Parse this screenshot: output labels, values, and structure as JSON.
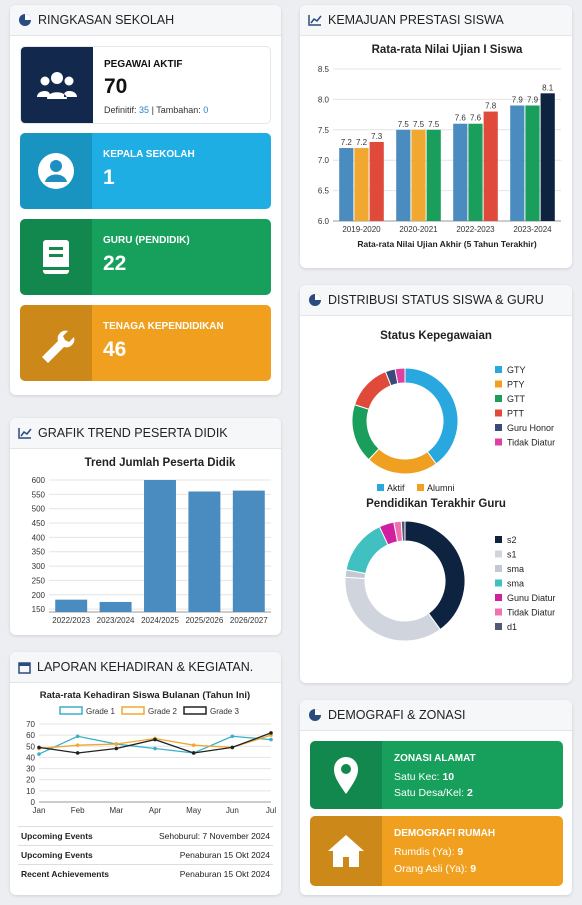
{
  "summary": {
    "title": "RINGKASAN SEKOLAH",
    "cards": [
      {
        "label": "PEGAWAI AKTIF",
        "value": 70,
        "details": [
          {
            "label": "Definitif:",
            "value": 35
          },
          {
            "label": "Tambahan:",
            "value": 0
          }
        ],
        "separator": "|"
      },
      {
        "label": "KEPALA SEKOLAH",
        "value": 1
      },
      {
        "label": "GURU (PENDIDIK)",
        "value": 22
      },
      {
        "label": "TENAGA KEPENDIDIKAN",
        "value": 46
      }
    ]
  },
  "trend": {
    "title": "GRAFIK TREND PESERTA DIDIK",
    "chart": {
      "type": "bar",
      "title": "Trend Jumlah Peserta Didik",
      "categories": [
        "2022/2023",
        "2023/2024",
        "2024/2025",
        "2025/2026",
        "2026/2027"
      ],
      "values": [
        183,
        175,
        600,
        560,
        563
      ],
      "color": "#4a8cc0",
      "ylim": [
        140,
        600
      ],
      "yticks": [
        150,
        200,
        250,
        300,
        350,
        400,
        450,
        500,
        550,
        600
      ],
      "grid": true
    }
  },
  "attendance": {
    "title": "LAPORAN KEHADIRAN & KEGIATAN.",
    "chart": {
      "type": "line",
      "title": "Rata-rata Kehadiran Siswa Bulanan (Tahun Ini)",
      "categories": [
        "Jan",
        "Feb",
        "Mar",
        "Apr",
        "May",
        "Jun",
        "Jul"
      ],
      "series": [
        {
          "name": "Grade 1",
          "color": "#3ab0c8",
          "values": [
            43,
            59,
            52,
            48,
            44,
            59,
            56
          ]
        },
        {
          "name": "Grade 2",
          "color": "#f0a830",
          "values": [
            48,
            51,
            52,
            57,
            51,
            49,
            60
          ]
        },
        {
          "name": "Grade 3",
          "color": "#222222",
          "values": [
            49,
            44,
            48,
            56,
            44,
            49,
            62
          ]
        }
      ],
      "ylim": [
        0,
        70
      ],
      "yticks": [
        0,
        10,
        20,
        30,
        40,
        50,
        60,
        70
      ],
      "grid": true
    },
    "events": [
      [
        "Upcoming Events",
        "Sehoburul: 7 November 2024"
      ],
      [
        "Upcoming Events",
        "Penaburan 15 Okt 2024"
      ],
      [
        "Recent Achievements",
        "Penaburan 15 Okt 2024"
      ]
    ]
  },
  "progress": {
    "title": "KEMAJUAN PRESTASI SISWA",
    "chart": {
      "type": "bar",
      "title": "Rata-rata Nilai Ujian I Siswa",
      "x_label": "Rata-rata Nilai Ujian Akhir (5 Tahun Terakhir)",
      "categories": [
        "2019-2020",
        "2020-2021",
        "2022-2023",
        "2023-2024"
      ],
      "series": [
        {
          "colors": [
            "#4a8cc0",
            "#4a8cc0",
            "#4a8cc0",
            "#4a8cc0"
          ],
          "values": [
            7.2,
            7.5,
            7.6,
            7.9
          ]
        },
        {
          "colors": [
            "#f0a830",
            "#f0a830",
            "#1a9e5c",
            "#1a9e5c"
          ],
          "values": [
            7.2,
            7.5,
            7.6,
            7.9
          ]
        },
        {
          "colors": [
            "#e04a3a",
            "#1a9e5c",
            "#e04a3a",
            "#0d2340"
          ],
          "values": [
            7.3,
            7.5,
            7.8,
            8.1
          ]
        }
      ],
      "ylim": [
        6,
        8.5
      ],
      "yticks": [
        {
          "value": 6,
          "label": "6.0"
        },
        6.5,
        {
          "value": 7,
          "label": "7.0"
        },
        7.5,
        {
          "value": 8,
          "label": "8.0"
        },
        8.5
      ],
      "grid": true
    }
  },
  "distribution": {
    "title": "DISTRIBUSI STATUS SISWA & GURU",
    "charts": [
      {
        "type": "donut",
        "title": "Status Kepegawaian",
        "categories": [
          "GTY",
          "PTY",
          "GTT",
          "PTT",
          "Guru Honor",
          "Tidak Diatur"
        ],
        "values": [
          40,
          22,
          18,
          14,
          3,
          3
        ],
        "colors": [
          "#29a8e0",
          "#f0a020",
          "#1a9e5c",
          "#e04a3a",
          "#3a4a7a",
          "#e040a0"
        ],
        "legend_extra": [
          {
            "name": "Aktif",
            "color": "#29a8e0"
          },
          {
            "name": "Alumni",
            "color": "#f0a020"
          }
        ]
      },
      {
        "type": "donut",
        "title": "Pendidikan Terakhir Guru",
        "categories": [
          "s2",
          "s1",
          "sma",
          "sma",
          "Gunu Diatur",
          "Tidak Diatur",
          "d1"
        ],
        "values": [
          40,
          36,
          2,
          15,
          4,
          2,
          1
        ],
        "colors": [
          "#0d2340",
          "#d0d4dc",
          "#c4c8d0",
          "#40c0c0",
          "#d020a0",
          "#f070b0",
          "#505a70"
        ]
      }
    ]
  },
  "demografi": {
    "title": "DEMOGRAFI & ZONASI",
    "cards": [
      {
        "title": "ZONASI ALAMAT",
        "items": [
          {
            "label": "Satu Kec:",
            "value": 10
          },
          {
            "label": "Satu Desa/Kel:",
            "value": 2
          }
        ]
      },
      {
        "title": "DEMOGRAFI RUMAH",
        "items": [
          {
            "label": "Rumdis (Ya):",
            "value": 9
          },
          {
            "label": "Orang Asli (Ya):",
            "value": 9
          }
        ]
      }
    ]
  }
}
